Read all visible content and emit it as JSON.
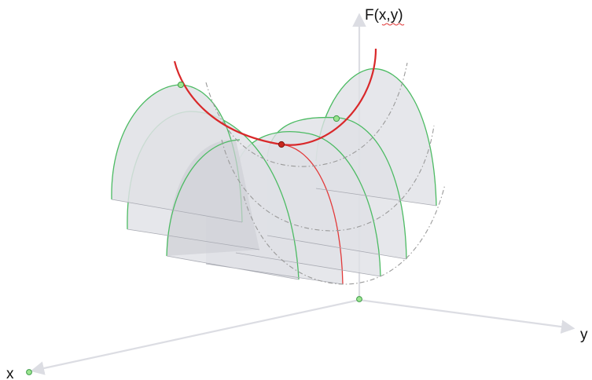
{
  "axes": {
    "vertical_label": "F(x,y)",
    "y_label": "y",
    "x_label": "x"
  },
  "colors": {
    "axis": "#dcdde3",
    "sheet_fill": "#dfe0e5",
    "arch_green": "#4cbb63",
    "arch_red": "#e23a3a",
    "parabola_red": "#d9282a",
    "dashed_curve": "#9a9a9a",
    "point_green": "#9be58f",
    "point_red": "#c8281e"
  },
  "icons": {
    "origin": "origin-point-icon",
    "x_axis_point": "x-axis-point-icon"
  }
}
